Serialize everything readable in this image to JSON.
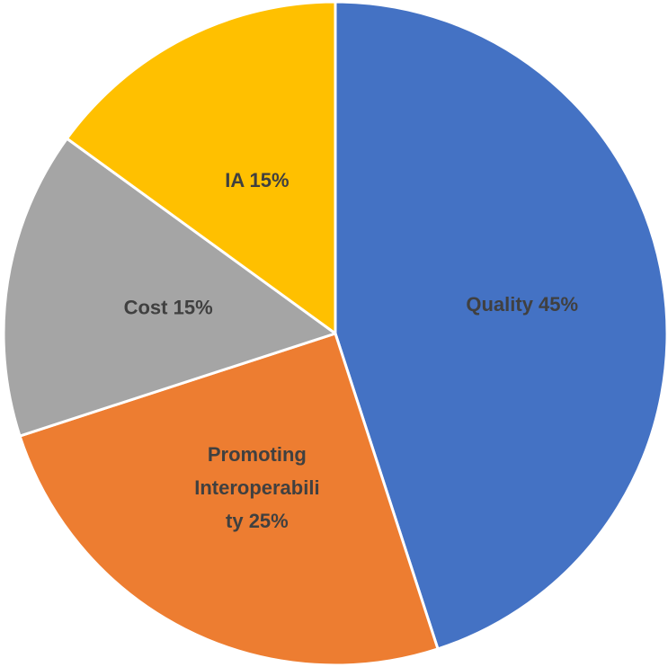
{
  "chart_data": {
    "type": "pie",
    "title": "",
    "start_angle_deg": 0,
    "direction": "clockwise",
    "slices": [
      {
        "label": "Quality",
        "value": 45,
        "label_lines": [
          "Quality 45%"
        ],
        "color": "#4472C4"
      },
      {
        "label": "Promoting Interoperability",
        "value": 25,
        "label_lines": [
          "Promoting",
          "Interoperabili",
          "ty 25%"
        ],
        "color": "#ED7D31"
      },
      {
        "label": "Cost",
        "value": 15,
        "label_lines": [
          "Cost 15%"
        ],
        "color": "#A5A5A5"
      },
      {
        "label": "IA",
        "value": 15,
        "label_lines": [
          "IA 15%"
        ],
        "color": "#FFC000"
      }
    ],
    "label_color": "#404040",
    "legend": "none"
  }
}
